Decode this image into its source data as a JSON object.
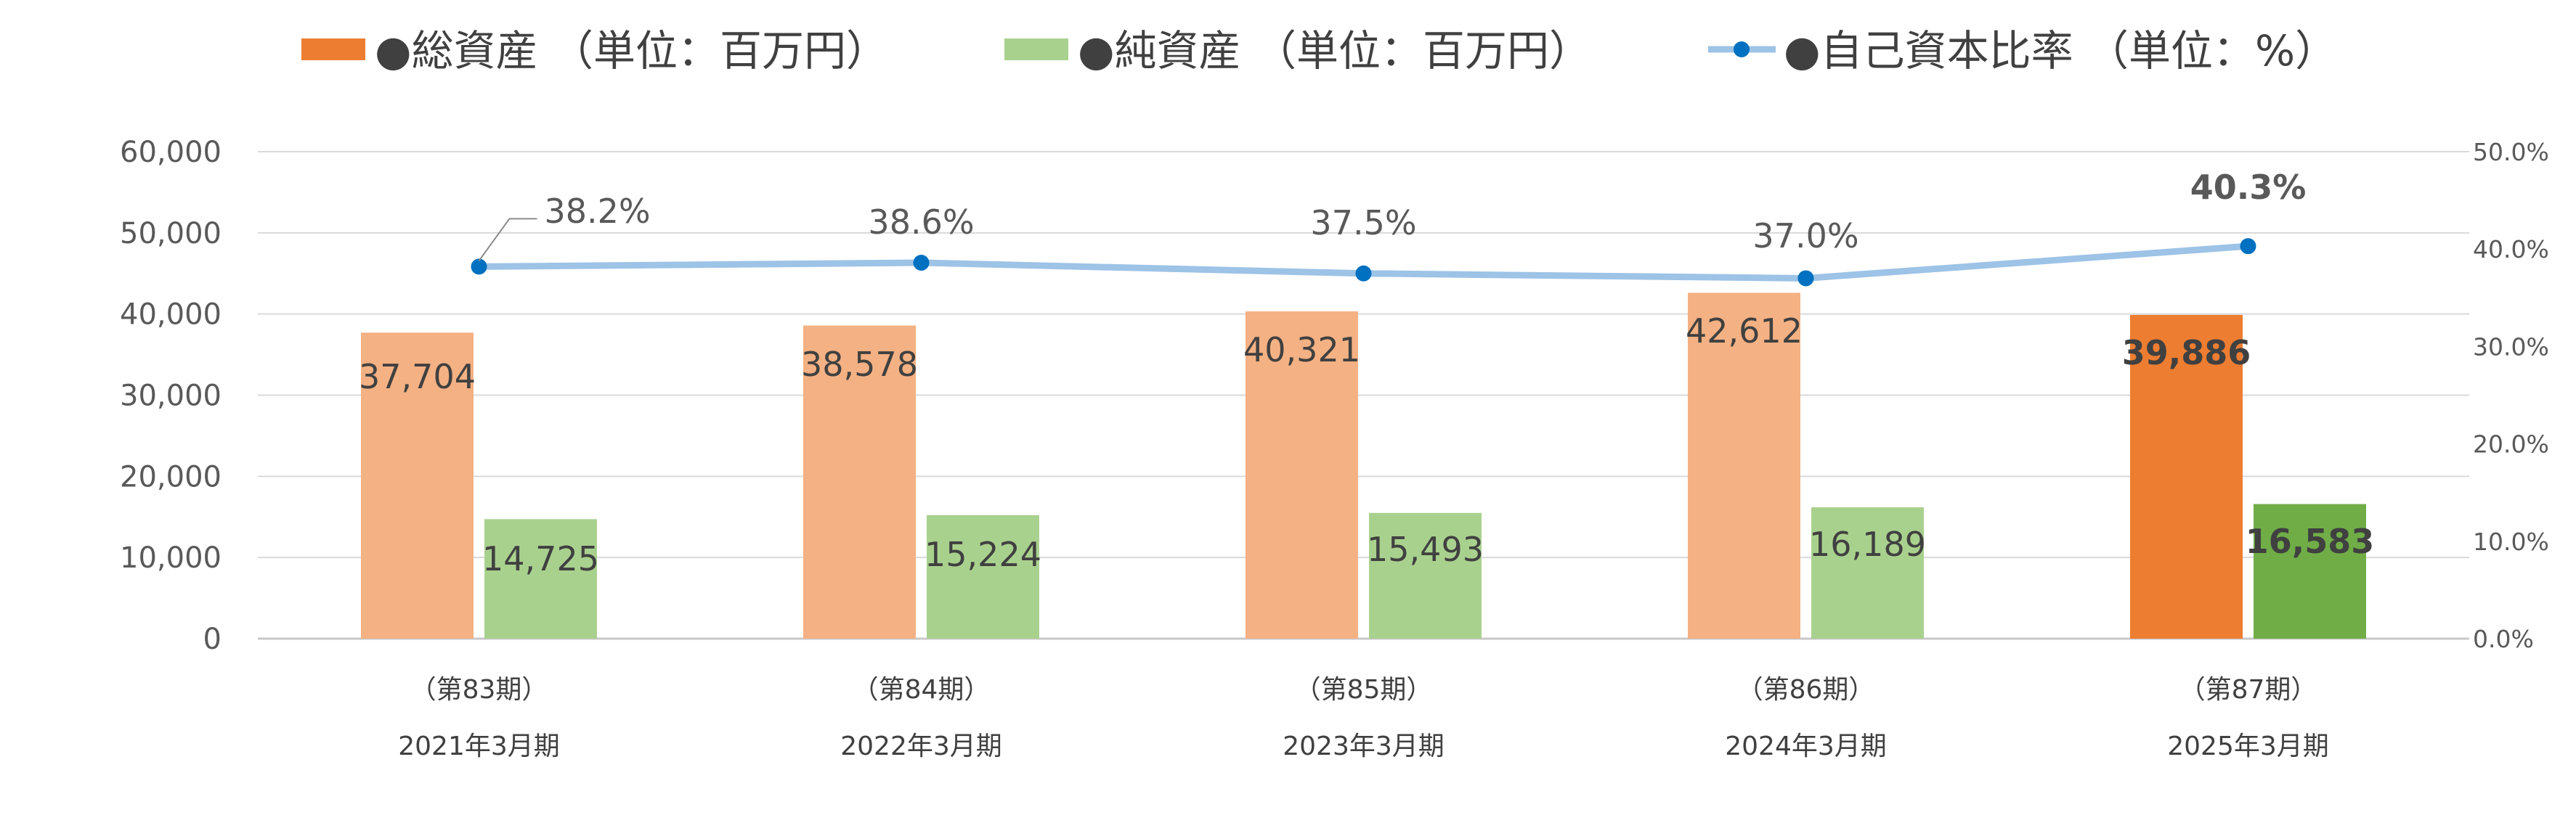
{
  "chart_data": {
    "type": "bar",
    "categories": [
      {
        "period": "（第83期）",
        "year": "2021年3月期"
      },
      {
        "period": "（第84期）",
        "year": "2022年3月期"
      },
      {
        "period": "（第85期）",
        "year": "2023年3月期"
      },
      {
        "period": "（第86期）",
        "year": "2024年3月期"
      },
      {
        "period": "（第87期）",
        "year": "2025年3月期"
      }
    ],
    "series": [
      {
        "name": "●総資産 （単位：百万円）",
        "kind": "bar",
        "axis": "left",
        "values": [
          37704,
          38578,
          40321,
          42612,
          39886
        ],
        "labels": [
          "37,704",
          "38,578",
          "40,321",
          "42,612",
          "39,886"
        ],
        "color": "#f4b183",
        "highlight_color": "#ed7d31"
      },
      {
        "name": "●純資産 （単位：百万円）",
        "kind": "bar",
        "axis": "left",
        "values": [
          14725,
          15224,
          15493,
          16189,
          16583
        ],
        "labels": [
          "14,725",
          "15,224",
          "15,493",
          "16,189",
          "16,583"
        ],
        "color": "#a9d18e",
        "highlight_color": "#70ad47"
      },
      {
        "name": "●自己資本比率 （単位：%）",
        "kind": "line",
        "axis": "right",
        "values": [
          38.2,
          38.6,
          37.5,
          37.0,
          40.3
        ],
        "labels": [
          "38.2%",
          "38.6%",
          "37.5%",
          "37.0%",
          "40.3%"
        ],
        "color": "#9dc3e6",
        "marker_color": "#0070c0"
      }
    ],
    "left_axis": {
      "min": 0,
      "max": 60000,
      "step": 10000,
      "ticks": [
        "0",
        "10,000",
        "20,000",
        "30,000",
        "40,000",
        "50,000",
        "60,000"
      ]
    },
    "right_axis": {
      "min": 0,
      "max": 50,
      "step": 10,
      "ticks": [
        "0.0%",
        "10.0%",
        "20.0%",
        "30.0%",
        "40.0%",
        "50.0%"
      ]
    },
    "highlight_index": 4,
    "grid": true,
    "legend_position": "top"
  }
}
